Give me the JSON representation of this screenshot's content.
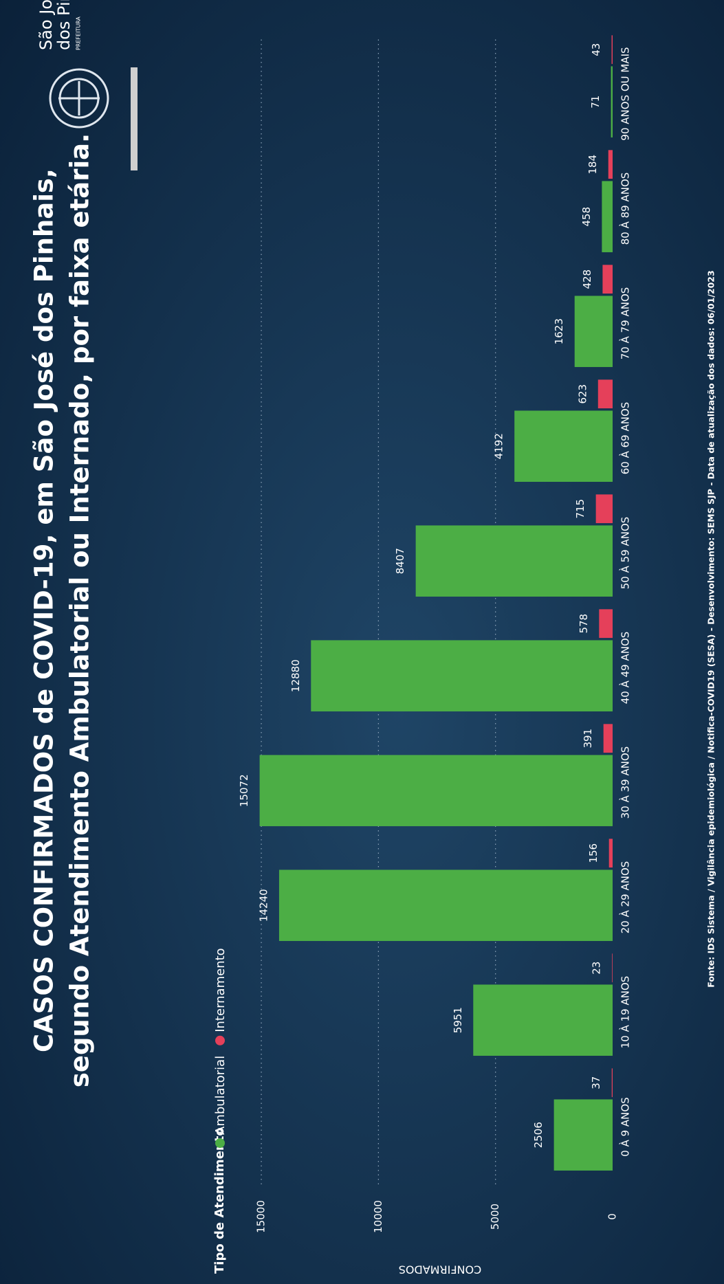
{
  "chart_data": {
    "type": "bar",
    "title": [
      "CASOS CONFIRMADOS de COVID-19, em São José dos Pinhais,",
      "segundo Atendimento Ambulatorial ou Internado, por faixa etária."
    ],
    "legend_title": "Tipo de Atendimento",
    "y_label": "CONFIRMADOS",
    "categories": [
      "0 À 9 ANOS",
      "10 À 19 ANOS",
      "20 À 29 ANOS",
      "30 À 39 ANOS",
      "40 À 49 ANOS",
      "50 À 59 ANOS",
      "60 À 69 ANOS",
      "70 À 79 ANOS",
      "80 À 89 ANOS",
      "90 ANOS OU MAIS"
    ],
    "series": [
      {
        "name": "Ambulatorial",
        "color": "#4cae45",
        "values": [
          2506,
          5951,
          14240,
          15072,
          12880,
          8407,
          4192,
          1623,
          458,
          71
        ]
      },
      {
        "name": "Internamento",
        "color": "#e5405a",
        "values": [
          37,
          23,
          156,
          391,
          578,
          715,
          623,
          428,
          184,
          43
        ]
      }
    ],
    "ylim": [
      0,
      16000
    ],
    "yticks": [
      0,
      5000,
      10000,
      15000
    ],
    "grid": true,
    "footer": "Fonte: IDS Sistema / Vigilância epidemiológica / Notifica-COVID19 (SESA) - Desenvolvimento: SEMS SJP - Data de atualização dos dados: 06/01/2023",
    "logo": [
      "São José",
      "dos Pinhais",
      "PREFEITURA"
    ]
  }
}
